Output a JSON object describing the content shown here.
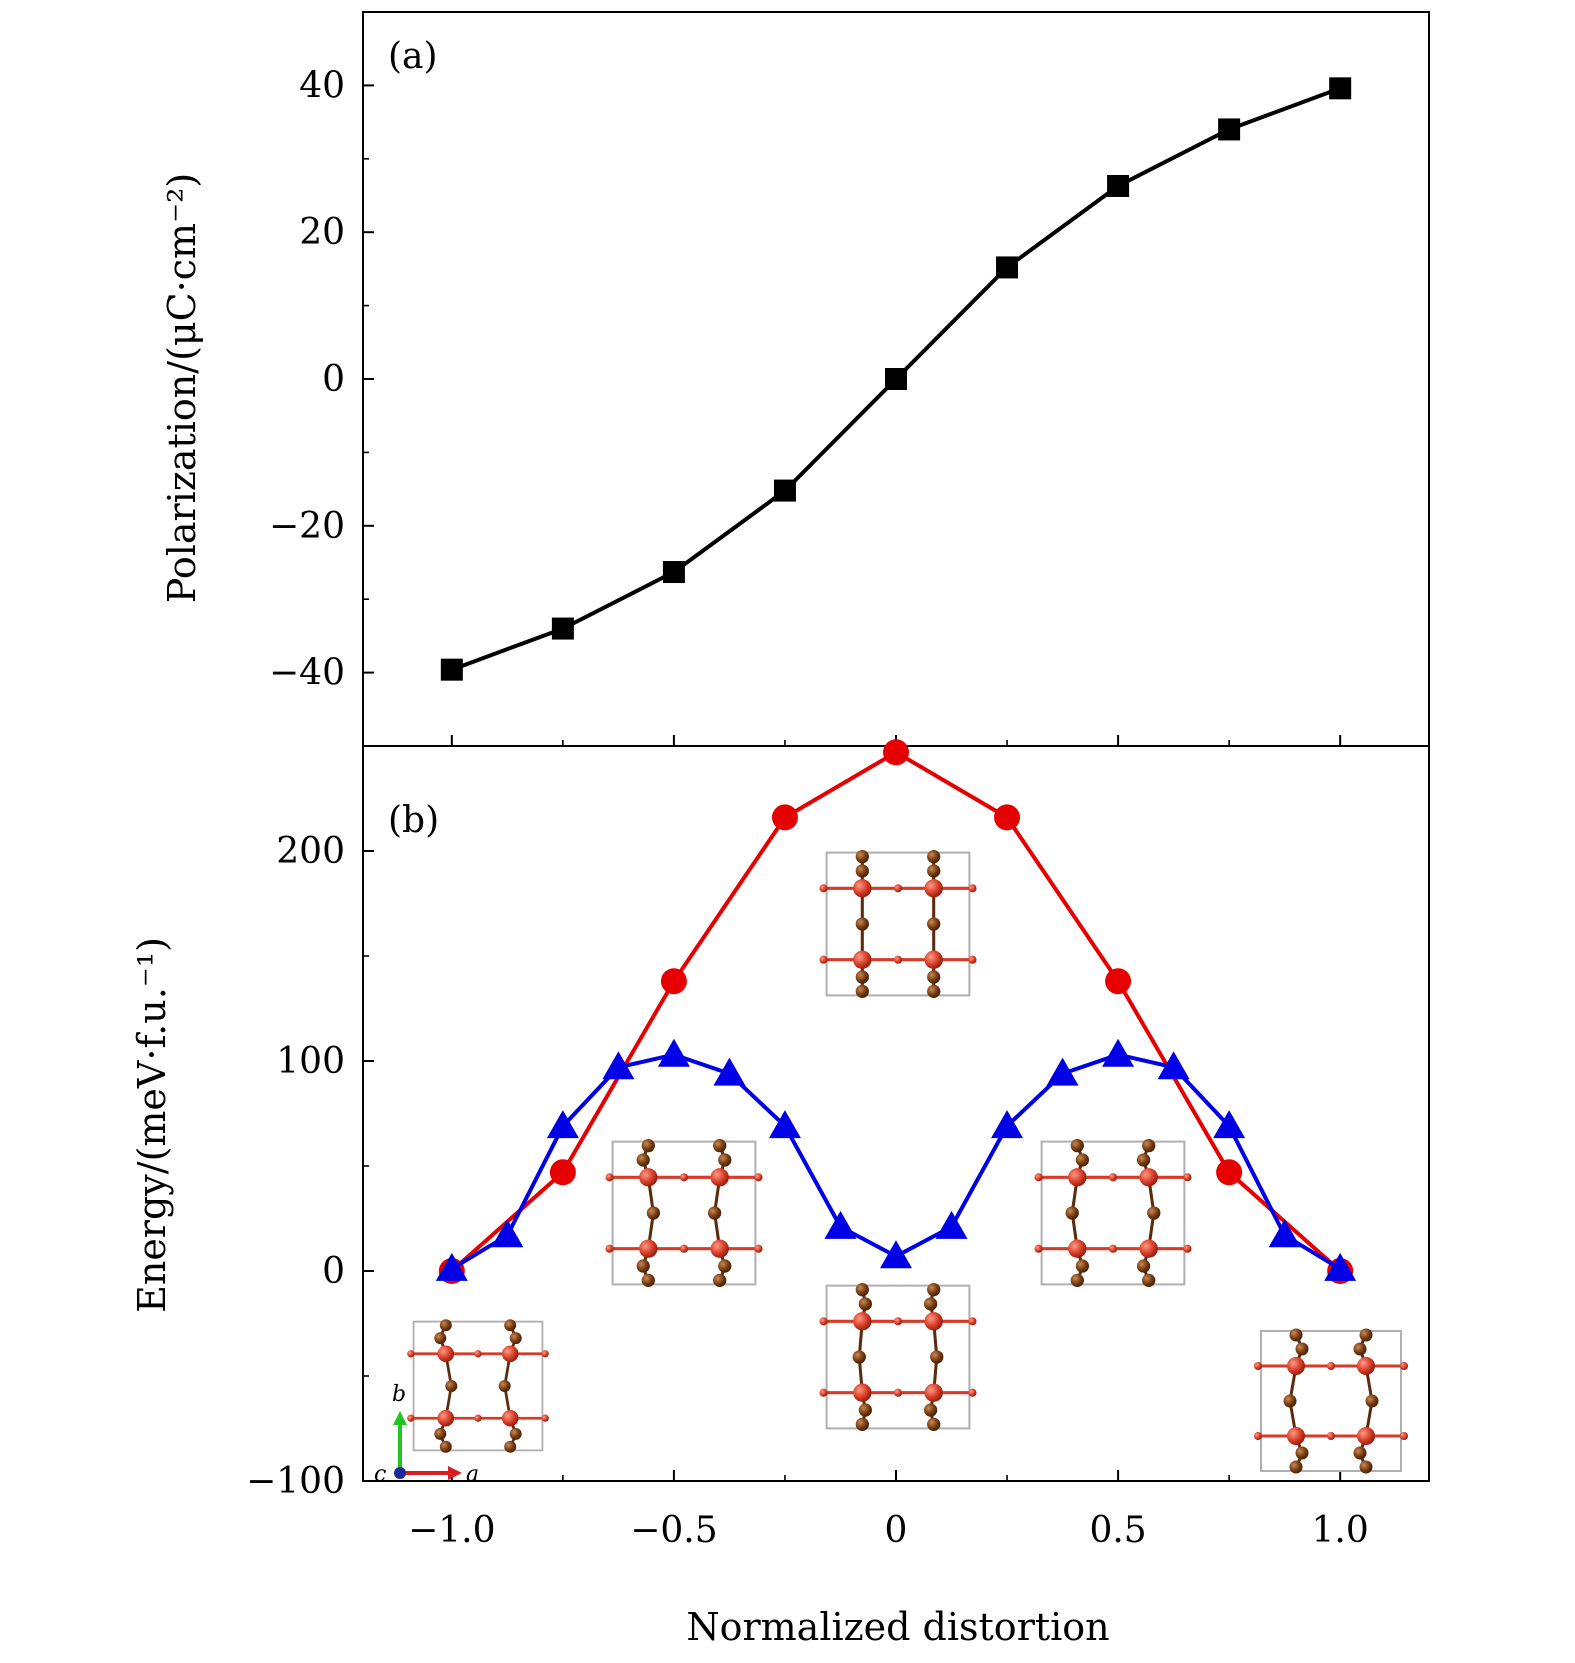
{
  "chart_data": [
    {
      "type": "line",
      "panel_label": "(a)",
      "xlabel": "Normalized distortion",
      "ylabel": "Polarization/(μC·cm⁻²)",
      "xlim": [
        -1.2,
        1.2
      ],
      "ylim": [
        -50,
        50
      ],
      "yticks": [
        -40,
        -20,
        0,
        20,
        40
      ],
      "ytick_labels": [
        "−40",
        "−20",
        "0",
        "20",
        "40"
      ],
      "series": [
        {
          "color": "#000000",
          "marker": "square",
          "x": [
            -1.0,
            -0.75,
            -0.5,
            -0.25,
            0,
            0.25,
            0.5,
            0.75,
            1.0
          ],
          "y": [
            -39.6,
            -34.0,
            -26.3,
            -15.2,
            0,
            15.2,
            26.3,
            34.0,
            39.6
          ]
        }
      ]
    },
    {
      "type": "line",
      "panel_label": "(b)",
      "xlabel": "Normalized distortion",
      "ylabel": "Energy/(meV·f.u.⁻¹)",
      "xlim": [
        -1.2,
        1.2
      ],
      "ylim": [
        -100,
        250
      ],
      "xticks": [
        -1.0,
        -0.5,
        0,
        0.5,
        1.0
      ],
      "xtick_labels": [
        "−1.0",
        "−0.5",
        "0",
        "0.5",
        "1.0"
      ],
      "yticks": [
        -100,
        0,
        100,
        200
      ],
      "ytick_labels": [
        "−100",
        "0",
        "100",
        "200"
      ],
      "series": [
        {
          "color": "#e60000",
          "marker": "circle",
          "x": [
            -1.0,
            -0.75,
            -0.5,
            -0.25,
            0,
            0.25,
            0.5,
            0.75,
            1.0
          ],
          "y": [
            0,
            47,
            138,
            216,
            247,
            216,
            138,
            47,
            0
          ]
        },
        {
          "color": "#0000e6",
          "marker": "triangle",
          "x": [
            -1.0,
            -0.875,
            -0.75,
            -0.625,
            -0.5,
            -0.375,
            -0.25,
            -0.125,
            0,
            0.125,
            0.25,
            0.375,
            0.5,
            0.625,
            0.75,
            0.875,
            1.0
          ],
          "y": [
            1,
            17,
            69,
            97,
            103,
            94,
            69,
            21,
            7,
            21,
            69,
            94,
            103,
            97,
            69,
            17,
            1
          ]
        }
      ],
      "insets": {
        "description_free": true,
        "axes_triad": {
          "a": "a",
          "b": "b",
          "c": "c"
        }
      }
    }
  ]
}
